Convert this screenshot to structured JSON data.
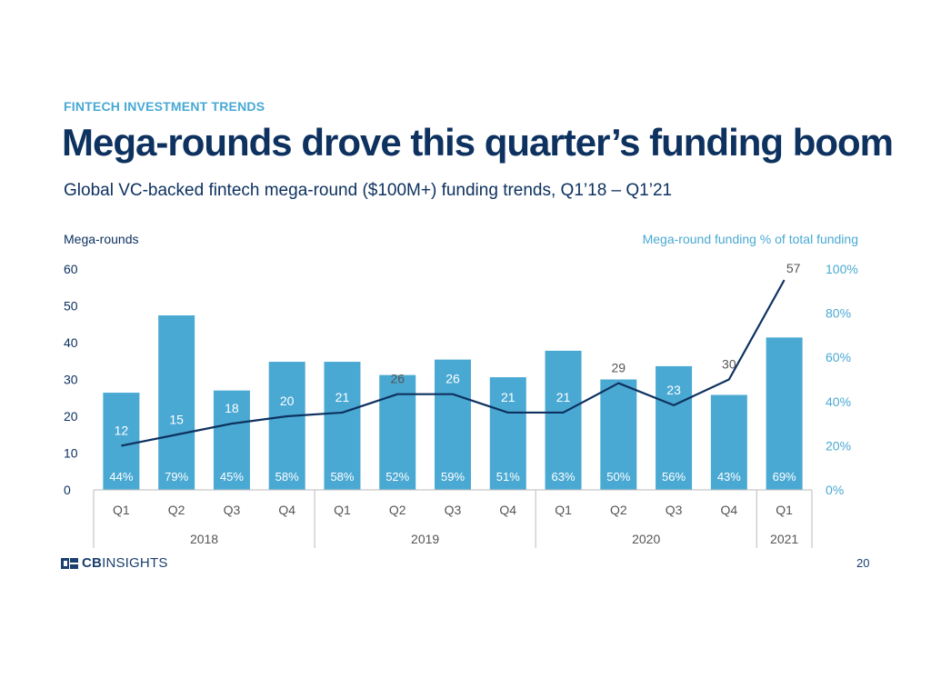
{
  "header": {
    "kicker": "FINTECH INVESTMENT TRENDS",
    "title": "Mega-rounds drove this quarter’s funding boom",
    "subtitle": "Global VC-backed fintech mega-round ($100M+) funding trends, Q1’18 – Q1’21"
  },
  "footer": {
    "logo_bold": "CB",
    "logo_rest": "INSIGHTS",
    "page_number": "20"
  },
  "chart_data": {
    "type": "bar",
    "left_axis_label": "Mega-rounds",
    "right_axis_label": "Mega-round funding % of total funding",
    "left_ylim": [
      0,
      60
    ],
    "left_ticks": [
      "0",
      "10",
      "20",
      "30",
      "40",
      "50",
      "60"
    ],
    "right_ylim": [
      0,
      100
    ],
    "right_ticks": [
      "0%",
      "20%",
      "40%",
      "60%",
      "80%",
      "100%"
    ],
    "quarters": [
      "Q1",
      "Q2",
      "Q3",
      "Q4",
      "Q1",
      "Q2",
      "Q3",
      "Q4",
      "Q1",
      "Q2",
      "Q3",
      "Q4",
      "Q1"
    ],
    "years": [
      {
        "label": "2018",
        "span": 4
      },
      {
        "label": "2019",
        "span": 4
      },
      {
        "label": "2020",
        "span": 4
      },
      {
        "label": "2021",
        "span": 1
      }
    ],
    "bars": {
      "name": "Mega-round funding % of total funding",
      "values": [
        44,
        79,
        45,
        58,
        58,
        52,
        59,
        51,
        63,
        50,
        56,
        43,
        69
      ],
      "labels": [
        "44%",
        "79%",
        "45%",
        "58%",
        "58%",
        "52%",
        "59%",
        "51%",
        "63%",
        "50%",
        "56%",
        "43%",
        "69%"
      ]
    },
    "line": {
      "name": "Mega-rounds",
      "values": [
        12,
        15,
        18,
        20,
        21,
        26,
        26,
        21,
        21,
        29,
        23,
        30,
        57
      ]
    },
    "grid": false,
    "colors": {
      "bar": "#4aa9d3",
      "line": "#0e3260",
      "left_axis_text": "#0e3260",
      "right_axis_text": "#4aa9d3",
      "axis_text_gray": "#555555",
      "bar_label": "#ffffff"
    }
  }
}
